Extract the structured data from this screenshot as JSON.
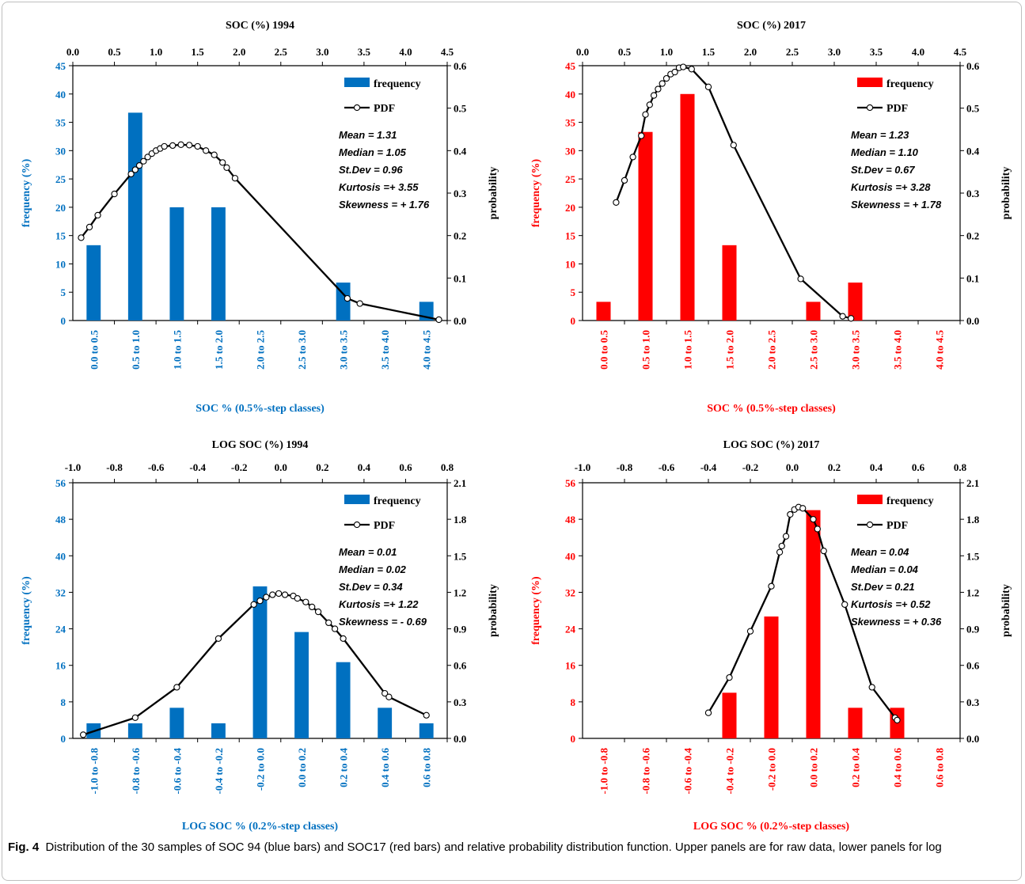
{
  "caption": {
    "label": "Fig. 4",
    "text": "Distribution of the 30 samples of SOC 94 (blue bars) and SOC17 (red bars) and relative probability distribution function. Upper panels are for raw data, lower panels for log"
  },
  "colors": {
    "blue": "#0070c0",
    "red": "#ff0000",
    "pdf": "#000000"
  },
  "chart_data": [
    {
      "type": "bar",
      "title": "SOC (%) 1994",
      "color": "#0070c0",
      "categories": [
        "0.0 to 0.5",
        "0.5 to 1.0",
        "1.0 to 1.5",
        "1.5 to 2.0",
        "2.0 to 2.5",
        "2.5 to 3.0",
        "3.0 to 3.5",
        "3.5 to 4.0",
        "4.0 to 4.5"
      ],
      "values": [
        13.3,
        36.7,
        20,
        20,
        0,
        0,
        6.7,
        0,
        3.3
      ],
      "xlabel": "SOC % (0.5%-step classes)",
      "ylabel": "frequency (%)",
      "y2label": "probability",
      "ylim": [
        0,
        45
      ],
      "yticks": [
        "0",
        "5",
        "10",
        "15",
        "20",
        "25",
        "30",
        "35",
        "40",
        "45"
      ],
      "y2lim": [
        0,
        0.6
      ],
      "y2ticks": [
        "0.0",
        "0.1",
        "0.2",
        "0.3",
        "0.4",
        "0.5",
        "0.6"
      ],
      "x2lim": [
        0,
        4.5
      ],
      "x2ticks": [
        "0.0",
        "0.5",
        "1.0",
        "1.5",
        "2.0",
        "2.5",
        "3.0",
        "3.5",
        "4.0",
        "4.5"
      ],
      "legend": {
        "bar": "frequency",
        "line": "PDF",
        "placement": "top-right"
      },
      "stats": [
        "Mean = 1.31",
        "Median = 1.05",
        "St.Dev = 0.96",
        "Kurtosis =+ 3.55",
        "Skewness = + 1.76"
      ],
      "pdf": {
        "x": [
          0.1,
          0.2,
          0.3,
          0.5,
          0.7,
          0.75,
          0.8,
          0.85,
          0.9,
          0.95,
          1.0,
          1.05,
          1.1,
          1.2,
          1.3,
          1.4,
          1.5,
          1.6,
          1.7,
          1.8,
          1.85,
          1.95,
          3.3,
          3.45,
          4.4
        ],
        "y": [
          0.195,
          0.22,
          0.248,
          0.298,
          0.345,
          0.355,
          0.365,
          0.375,
          0.385,
          0.393,
          0.4,
          0.405,
          0.41,
          0.412,
          0.414,
          0.413,
          0.41,
          0.4,
          0.39,
          0.372,
          0.36,
          0.335,
          0.052,
          0.04,
          0.002
        ]
      }
    },
    {
      "type": "bar",
      "title": "SOC (%) 2017",
      "color": "#ff0000",
      "categories": [
        "0.0 to 0.5",
        "0.5 to 1.0",
        "1.0 to 1.5",
        "1.5 to 2.0",
        "2.0 to 2.5",
        "2.5 to 3.0",
        "3.0 to 3.5",
        "3.5 to 4.0",
        "4.0 to 4.5"
      ],
      "values": [
        3.3,
        33.3,
        40,
        13.3,
        0,
        3.3,
        6.7,
        0,
        0
      ],
      "xlabel": "SOC % (0.5%-step classes)",
      "ylabel": "frequency (%)",
      "y2label": "probability",
      "ylim": [
        0,
        45
      ],
      "yticks": [
        "0",
        "5",
        "10",
        "15",
        "20",
        "25",
        "30",
        "35",
        "40",
        "45"
      ],
      "y2lim": [
        0,
        0.6
      ],
      "y2ticks": [
        "0.0",
        "0.1",
        "0.2",
        "0.3",
        "0.4",
        "0.5",
        "0.6"
      ],
      "x2lim": [
        0,
        4.5
      ],
      "x2ticks": [
        "0.0",
        "0.5",
        "1.0",
        "1.5",
        "2.0",
        "2.5",
        "3.0",
        "3.5",
        "4.0",
        "4.5"
      ],
      "legend": {
        "bar": "frequency",
        "line": "PDF",
        "placement": "top-right"
      },
      "stats": [
        "Mean = 1.23",
        "Median = 1.10",
        "St.Dev = 0.67",
        "Kurtosis =+ 3.28",
        "Skewness = + 1.78"
      ],
      "pdf": {
        "x": [
          0.4,
          0.5,
          0.6,
          0.7,
          0.75,
          0.8,
          0.85,
          0.9,
          0.95,
          1.0,
          1.05,
          1.1,
          1.15,
          1.2,
          1.3,
          1.5,
          1.8,
          2.6,
          3.1,
          3.2
        ],
        "y": [
          0.278,
          0.33,
          0.385,
          0.435,
          0.485,
          0.508,
          0.53,
          0.545,
          0.558,
          0.57,
          0.58,
          0.585,
          0.595,
          0.597,
          0.592,
          0.55,
          0.413,
          0.098,
          0.01,
          0.005
        ]
      }
    },
    {
      "type": "bar",
      "title": "LOG SOC (%) 1994",
      "color": "#0070c0",
      "categories": [
        "-1.0 to -0.8",
        "-0.8 to -0.6",
        "-0.6 to -0.4",
        "-0.4 to -0.2",
        "-0.2 to 0.0",
        "0.0 to 0.2",
        "0.2 to 0.4",
        "0.4 to 0.6",
        "0.6 to 0.8"
      ],
      "values": [
        3.3,
        3.3,
        6.7,
        3.3,
        33.3,
        23.3,
        16.7,
        6.7,
        3.3
      ],
      "xlabel": "LOG SOC % (0.2%-step classes)",
      "ylabel": "frequency (%)",
      "y2label": "probability",
      "ylim": [
        0,
        56
      ],
      "yticks": [
        "0",
        "8",
        "16",
        "24",
        "32",
        "40",
        "48",
        "56"
      ],
      "y2lim": [
        0,
        2.1
      ],
      "y2ticks": [
        "0.0",
        "0.3",
        "0.6",
        "0.9",
        "1.2",
        "1.5",
        "1.8",
        "2.1"
      ],
      "x2lim": [
        -1.0,
        0.8
      ],
      "x2ticks": [
        "-1.0",
        "-0.8",
        "-0.6",
        "-0.4",
        "-0.2",
        "0.0",
        "0.2",
        "0.4",
        "0.6",
        "0.8"
      ],
      "legend": {
        "bar": "frequency",
        "line": "PDF",
        "placement": "top-right"
      },
      "stats": [
        "Mean = 0.01",
        "Median = 0.02",
        "St.Dev = 0.34",
        "Kurtosis =+ 1.22",
        "Skewness = - 0.69"
      ],
      "pdf": {
        "x": [
          -0.95,
          -0.7,
          -0.5,
          -0.3,
          -0.13,
          -0.1,
          -0.07,
          -0.04,
          -0.01,
          0.02,
          0.06,
          0.08,
          0.12,
          0.15,
          0.18,
          0.23,
          0.26,
          0.3,
          0.5,
          0.52,
          0.7
        ],
        "y": [
          0.03,
          0.17,
          0.42,
          0.82,
          1.1,
          1.13,
          1.16,
          1.18,
          1.19,
          1.18,
          1.17,
          1.15,
          1.12,
          1.08,
          1.04,
          0.95,
          0.9,
          0.82,
          0.37,
          0.34,
          0.19
        ]
      }
    },
    {
      "type": "bar",
      "title": "LOG SOC (%) 2017",
      "color": "#ff0000",
      "categories": [
        "-1.0 to -0.8",
        "-0.8 to -0.6",
        "-0.6 to -0.4",
        "-0.4 to -0.2",
        "-0.2 to 0.0",
        "0.0 to 0.2",
        "0.2 to 0.4",
        "0.4 to 0.6",
        "0.6 to 0.8"
      ],
      "values": [
        0,
        0,
        0,
        10,
        26.7,
        50,
        6.7,
        6.7,
        0
      ],
      "xlabel": "LOG SOC % (0.2%-step classes)",
      "ylabel": "frequency (%)",
      "y2label": "probability",
      "ylim": [
        0,
        56
      ],
      "yticks": [
        "0",
        "8",
        "16",
        "24",
        "32",
        "40",
        "48",
        "56"
      ],
      "y2lim": [
        0,
        2.1
      ],
      "y2ticks": [
        "0.0",
        "0.3",
        "0.6",
        "0.9",
        "1.2",
        "1.5",
        "1.8",
        "2.1"
      ],
      "x2lim": [
        -1.0,
        0.8
      ],
      "x2ticks": [
        "-1.0",
        "-0.8",
        "-0.6",
        "-0.4",
        "-0.2",
        "0.0",
        "0.2",
        "0.4",
        "0.6",
        "0.8"
      ],
      "legend": {
        "bar": "frequency",
        "line": "PDF",
        "placement": "top-right"
      },
      "stats": [
        "Mean = 0.04",
        "Median = 0.04",
        "St.Dev = 0.21",
        "Kurtosis =+ 0.52",
        "Skewness = + 0.36"
      ],
      "pdf": {
        "x": [
          -0.4,
          -0.3,
          -0.2,
          -0.1,
          -0.06,
          -0.05,
          -0.03,
          -0.01,
          0.01,
          0.03,
          0.05,
          0.1,
          0.12,
          0.15,
          0.25,
          0.38,
          0.49,
          0.5
        ],
        "y": [
          0.21,
          0.5,
          0.88,
          1.25,
          1.53,
          1.58,
          1.66,
          1.84,
          1.88,
          1.9,
          1.89,
          1.8,
          1.72,
          1.54,
          1.1,
          0.42,
          0.17,
          0.15
        ]
      }
    }
  ]
}
